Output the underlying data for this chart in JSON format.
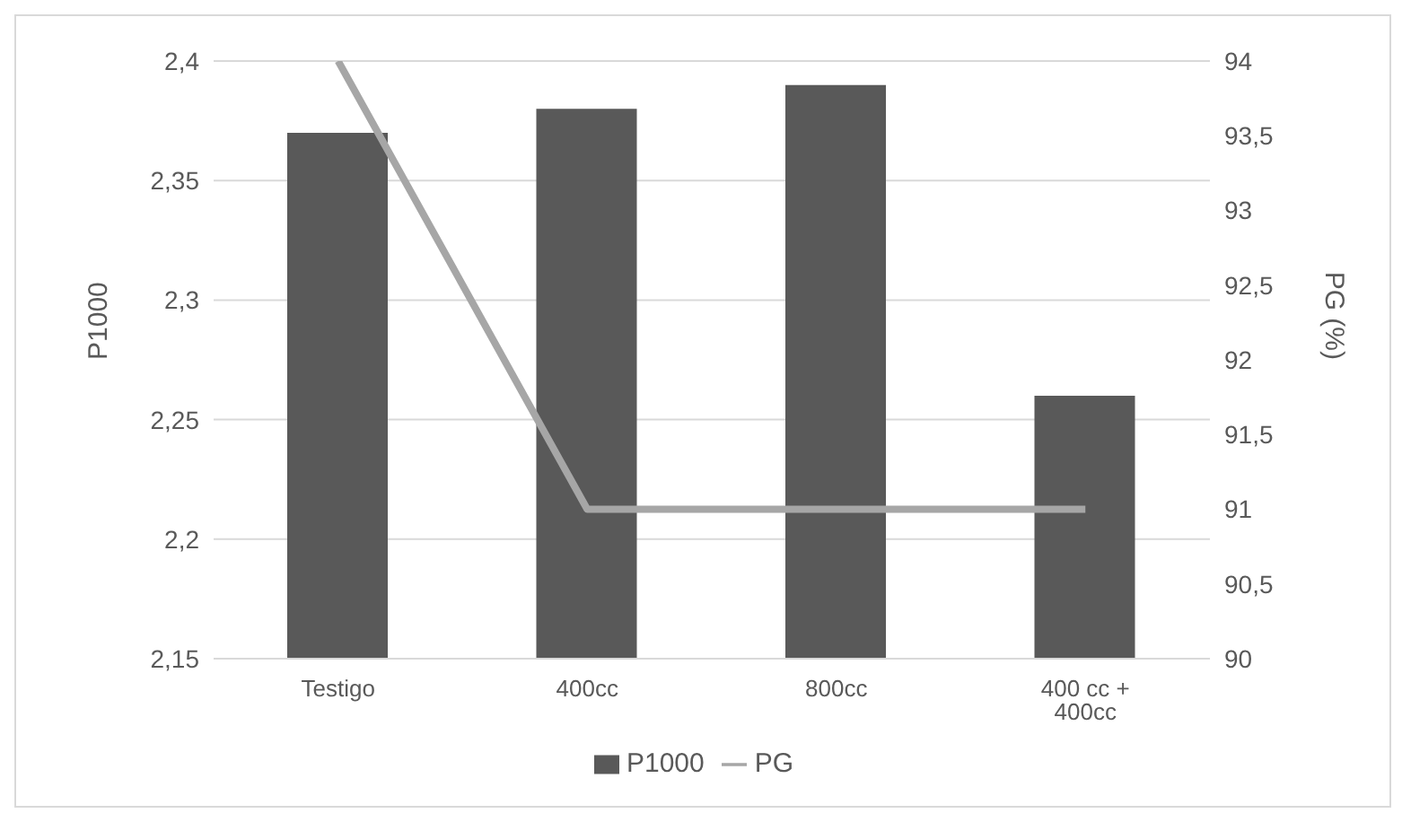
{
  "chart_data": {
    "type": "bar",
    "ylabel": "P1000",
    "y2label": "PG (%)",
    "categories": [
      "Testigo",
      "400cc",
      "800cc",
      "400 cc + 400cc"
    ],
    "series": [
      {
        "name": "P1000",
        "color": "#595959",
        "values": [
          2.37,
          2.38,
          2.39,
          2.26
        ]
      },
      {
        "name": "PG",
        "type": "line",
        "axis": "y2",
        "color": "#a6a6a6",
        "values": [
          94,
          91,
          91,
          91
        ]
      }
    ],
    "ylim": [
      2.15,
      2.4
    ],
    "yticks": [
      {
        "value": 2.15,
        "label": "2,15"
      },
      {
        "value": 2.2,
        "label": "2,2"
      },
      {
        "value": 2.25,
        "label": "2,25"
      },
      {
        "value": 2.3,
        "label": "2,3"
      },
      {
        "value": 2.35,
        "label": "2,35"
      },
      {
        "value": 2.4,
        "label": "2,4"
      }
    ],
    "y2lim": [
      90,
      94
    ],
    "y2ticks": [
      90,
      {
        "value": 90.5,
        "label": "90,5"
      },
      91,
      {
        "value": 91.5,
        "label": "91,5"
      },
      92,
      {
        "value": 92.5,
        "label": "92,5"
      },
      93,
      {
        "value": 93.5,
        "label": "93,5"
      },
      94
    ],
    "grid": "y",
    "legend": "bottom"
  }
}
